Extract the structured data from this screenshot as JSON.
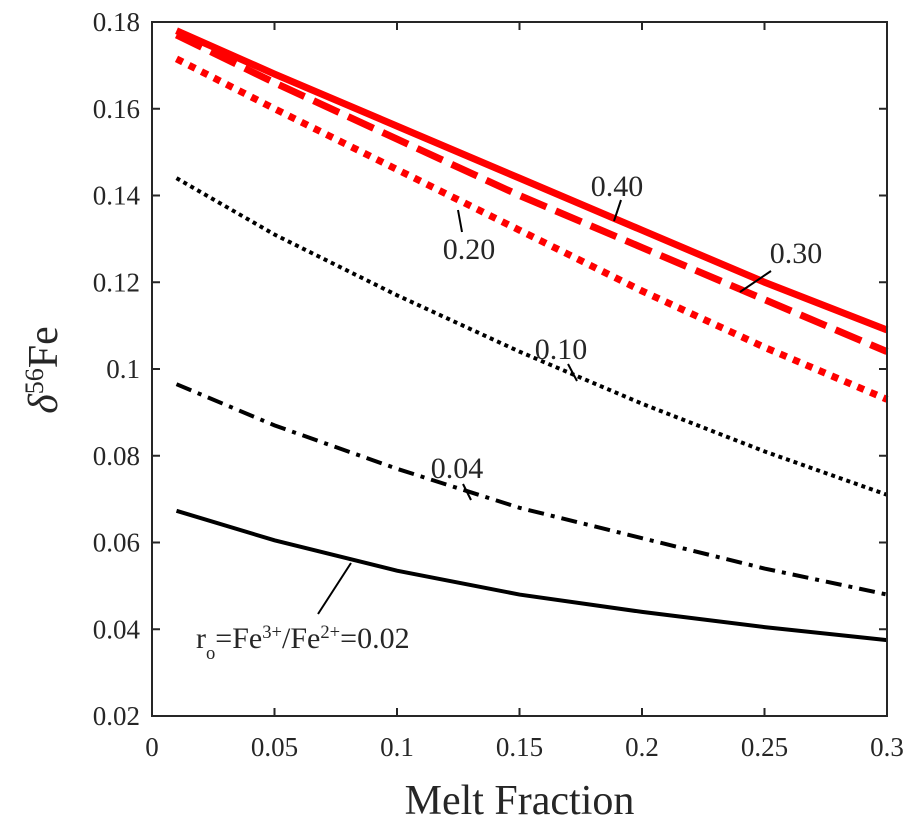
{
  "chart_data": {
    "type": "line",
    "xlabel": "Melt Fraction",
    "ylabel_parts": [
      {
        "text": "δ",
        "italic": true
      },
      {
        "text": "56",
        "shift": "super"
      },
      {
        "text": "Fe"
      }
    ],
    "x": [
      0.01,
      0.05,
      0.1,
      0.15,
      0.2,
      0.25,
      0.3
    ],
    "series": [
      {
        "color": "#ff0000",
        "style": "solid",
        "linewidth": 7,
        "values": [
          0.178,
          0.168,
          0.156,
          0.144,
          0.132,
          0.12,
          0.109
        ]
      },
      {
        "color": "#ff0000",
        "style": "dashed",
        "linewidth": 7,
        "values": [
          0.177,
          0.166,
          0.153,
          0.14,
          0.128,
          0.116,
          0.104
        ]
      },
      {
        "color": "#ff0000",
        "style": "dotted",
        "linewidth": 7,
        "values": [
          0.1715,
          0.16,
          0.146,
          0.132,
          0.118,
          0.105,
          0.093
        ]
      },
      {
        "color": "#000000",
        "style": "dotted",
        "linewidth": 4,
        "values": [
          0.144,
          0.131,
          0.117,
          0.104,
          0.092,
          0.081,
          0.071
        ]
      },
      {
        "color": "#000000",
        "style": "dashdot",
        "linewidth": 4,
        "values": [
          0.0965,
          0.087,
          0.077,
          0.068,
          0.061,
          0.054,
          0.048
        ]
      },
      {
        "color": "#000000",
        "style": "solid",
        "linewidth": 4,
        "values": [
          0.0673,
          0.0605,
          0.0535,
          0.048,
          0.044,
          0.0405,
          0.0375
        ]
      }
    ],
    "annotations": [
      {
        "parts": [
          {
            "text": "0.40"
          }
        ]
      },
      {
        "parts": [
          {
            "text": "0.30"
          }
        ]
      },
      {
        "parts": [
          {
            "text": "0.20"
          }
        ]
      },
      {
        "parts": [
          {
            "text": "0.10"
          }
        ]
      },
      {
        "parts": [
          {
            "text": "0.04"
          }
        ]
      },
      {
        "parts": [
          {
            "text": "r"
          },
          {
            "text": "o",
            "shift": "sub"
          },
          {
            "text": "=Fe"
          },
          {
            "text": "3+",
            "shift": "super"
          },
          {
            "text": "/Fe"
          },
          {
            "text": "2+",
            "shift": "super"
          },
          {
            "text": "=0.02"
          }
        ]
      }
    ],
    "xlim": [
      0,
      0.3
    ],
    "xticks": [
      0,
      0.05,
      0.1,
      0.15,
      0.2,
      0.25,
      0.3
    ],
    "ylim": [
      0.02,
      0.18
    ],
    "yticks": [
      0.02,
      0.04,
      0.06,
      0.08,
      0.1,
      0.12,
      0.14,
      0.16,
      0.18
    ],
    "grid": false
  }
}
